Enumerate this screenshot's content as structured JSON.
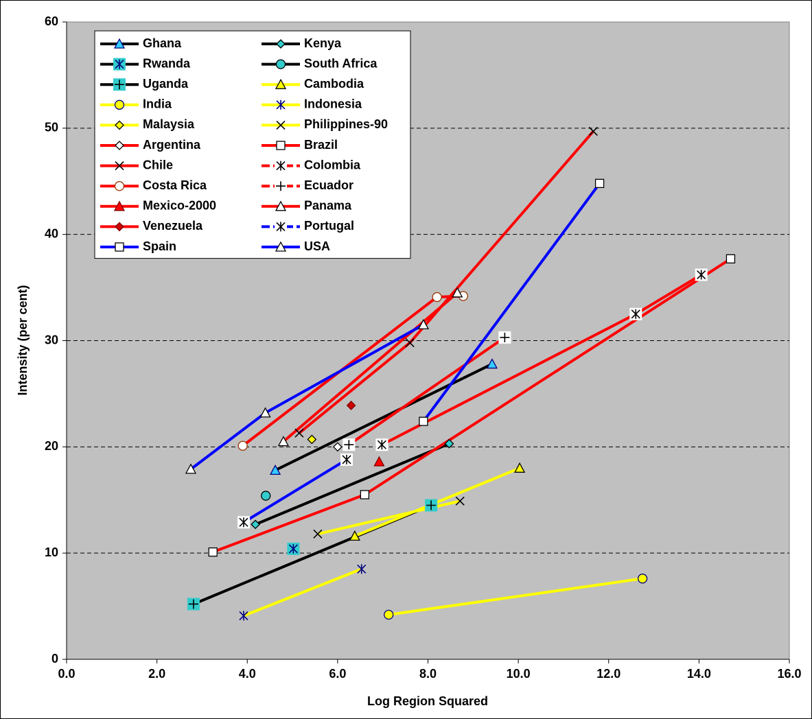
{
  "chart_data": {
    "type": "scatter",
    "x_label": "Log Region Squared",
    "y_label": "Intensity (per cent)",
    "xlim": [
      0,
      16
    ],
    "ylim": [
      0,
      60
    ],
    "xticks": [
      {
        "value": 0,
        "label": "0.0"
      },
      {
        "value": 2,
        "label": "2.0"
      },
      {
        "value": 4,
        "label": "4.0"
      },
      {
        "value": 6,
        "label": "6.0"
      },
      {
        "value": 8,
        "label": "8.0"
      },
      {
        "value": 10,
        "label": "10.0"
      },
      {
        "value": 12,
        "label": "12.0"
      },
      {
        "value": 14,
        "label": "14.0"
      },
      {
        "value": 16,
        "label": "16.0"
      }
    ],
    "yticks": [
      0,
      10,
      20,
      30,
      40,
      50,
      60
    ],
    "grid": true,
    "legend": "upper left",
    "background": "#c0c0c0",
    "series": [
      {
        "name": "Ghana",
        "color": "#000000",
        "marker": "triangle",
        "marker_color": "#33ccff",
        "marker_edge": "#000080",
        "x": [
          4.62,
          9.42
        ],
        "values": [
          17.8,
          27.8
        ]
      },
      {
        "name": "Kenya",
        "color": "#000000",
        "marker": "diamond",
        "marker_color": "#33cccc",
        "marker_edge": "#000000",
        "x": [
          4.18,
          8.47
        ],
        "values": [
          12.7,
          20.3
        ]
      },
      {
        "name": "Rwanda",
        "color": "#000000",
        "marker": "asterisk",
        "marker_color": "#33cccc",
        "marker_edge": "#000080",
        "x": [
          5.02
        ],
        "values": [
          10.4
        ]
      },
      {
        "name": "South Africa",
        "color": "#000000",
        "marker": "circle",
        "marker_color": "#33cccc",
        "marker_edge": "#000000",
        "x": [
          4.41
        ],
        "values": [
          15.4
        ]
      },
      {
        "name": "Uganda",
        "color": "#000000",
        "marker": "plus",
        "marker_color": "#33cccc",
        "marker_edge": "#000000",
        "x": [
          2.81,
          8.07
        ],
        "values": [
          5.2,
          14.5
        ]
      },
      {
        "name": "Cambodia",
        "color": "#ffff00",
        "marker": "triangle",
        "marker_color": "#ffff00",
        "marker_edge": "#000000",
        "x": [
          6.38,
          10.03
        ],
        "values": [
          11.6,
          18.0
        ]
      },
      {
        "name": "India",
        "color": "#ffff00",
        "marker": "circle",
        "marker_color": "#ffff00",
        "marker_edge": "#000080",
        "x": [
          7.13,
          12.75
        ],
        "values": [
          4.2,
          7.6
        ]
      },
      {
        "name": "Indonesia",
        "color": "#ffff00",
        "marker": "asterisk",
        "marker_edge": "#000080",
        "x": [
          3.92,
          6.53
        ],
        "values": [
          4.1,
          8.5
        ]
      },
      {
        "name": "Malaysia",
        "color": "#ffff00",
        "marker": "diamond",
        "marker_color": "#ffff00",
        "marker_edge": "#000000",
        "x": [
          5.43
        ],
        "values": [
          20.7
        ]
      },
      {
        "name": "Philippines-90",
        "color": "#ffff00",
        "marker": "x",
        "marker_edge": "#000000",
        "x": [
          5.56,
          8.71
        ],
        "values": [
          11.8,
          14.9
        ]
      },
      {
        "name": "Argentina",
        "color": "#ff0000",
        "marker": "diamond",
        "marker_color": "#ffffff",
        "marker_edge": "#000000",
        "x": [
          6.0
        ],
        "values": [
          20.0
        ]
      },
      {
        "name": "Brazil",
        "color": "#ff0000",
        "marker": "square",
        "marker_color": "#ffffff",
        "marker_edge": "#000000",
        "x": [
          3.24,
          6.6,
          14.7
        ],
        "values": [
          10.1,
          15.5,
          37.7
        ]
      },
      {
        "name": "Chile",
        "color": "#ff0000",
        "marker": "x",
        "marker_edge": "#000000",
        "x": [
          5.15,
          7.6,
          11.66
        ],
        "values": [
          21.3,
          29.8,
          49.7
        ]
      },
      {
        "name": "Colombia",
        "color": "#ff0000",
        "dashed": true,
        "marker": "asterisk",
        "marker_color": "#ffffff",
        "marker_edge": "#000000",
        "x": [
          6.98,
          12.6,
          14.05
        ],
        "values": [
          20.2,
          32.5,
          36.2
        ]
      },
      {
        "name": "Costa Rica",
        "color": "#ff0000",
        "marker": "circle",
        "marker_color": "#ffffff",
        "marker_edge": "#993300",
        "x": [
          3.9,
          8.2,
          8.78
        ],
        "values": [
          20.1,
          34.1,
          34.2
        ]
      },
      {
        "name": "Ecuador",
        "color": "#ff0000",
        "dashed": true,
        "marker": "plus",
        "marker_color": "#ffffff",
        "marker_edge": "#000000",
        "x": [
          6.25,
          9.7
        ],
        "values": [
          20.2,
          30.3
        ]
      },
      {
        "name": "Mexico-2000",
        "color": "#ff0000",
        "marker": "triangle",
        "marker_color": "#ff0000",
        "marker_edge": "#800000",
        "x": [
          6.92
        ],
        "values": [
          18.6
        ]
      },
      {
        "name": "Panama",
        "color": "#ff0000",
        "marker": "triangle",
        "marker_color": "#ffffff",
        "marker_edge": "#000000",
        "x": [
          4.8,
          8.65
        ],
        "values": [
          20.5,
          34.5
        ]
      },
      {
        "name": "Venezuela",
        "color": "#ff0000",
        "marker": "diamond",
        "marker_color": "#cc0000",
        "marker_edge": "#800000",
        "x": [
          6.3
        ],
        "values": [
          23.9
        ]
      },
      {
        "name": "Portugal",
        "color": "#0000ff",
        "dashed": true,
        "marker": "asterisk",
        "marker_color": "#ffffff",
        "marker_edge": "#000000",
        "x": [
          3.92,
          6.2
        ],
        "values": [
          12.9,
          18.8
        ]
      },
      {
        "name": "Spain",
        "color": "#0000ff",
        "marker": "square",
        "marker_color": "#ffffff",
        "marker_edge": "#000000",
        "x": [
          7.9,
          11.8
        ],
        "values": [
          22.4,
          44.8
        ]
      },
      {
        "name": "USA",
        "color": "#0000ff",
        "marker": "triangle",
        "marker_color": "#ffffff",
        "marker_edge": "#000000",
        "x": [
          2.75,
          4.4,
          7.9
        ],
        "values": [
          17.9,
          23.2,
          31.5
        ]
      }
    ]
  }
}
